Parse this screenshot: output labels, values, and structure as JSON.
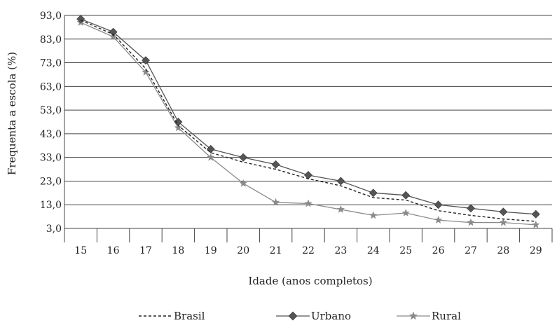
{
  "chart_data": {
    "type": "line",
    "xlabel": "Idade (anos completos)",
    "ylabel": "Frequenta a escola (%)",
    "x": [
      "15",
      "16",
      "17",
      "18",
      "19",
      "20",
      "21",
      "22",
      "23",
      "24",
      "25",
      "26",
      "27",
      "28",
      "29"
    ],
    "yticks": [
      "3,0",
      "13,0",
      "23,0",
      "33,0",
      "43,0",
      "53,0",
      "63,0",
      "73,0",
      "83,0",
      "93,0"
    ],
    "ylim": [
      3,
      93
    ],
    "grid": true,
    "legend_position": "bottom",
    "series": [
      {
        "name": "Brasil",
        "style": "dashed",
        "marker": "none",
        "color": "#222222",
        "values": [
          91.0,
          85.0,
          70.5,
          46.5,
          35.0,
          31.0,
          28.0,
          24.0,
          21.0,
          16.0,
          15.0,
          10.5,
          8.5,
          7.0,
          6.0
        ]
      },
      {
        "name": "Urbano",
        "style": "solid",
        "marker": "diamond",
        "color": "#555555",
        "values": [
          91.5,
          86.0,
          74.0,
          48.0,
          36.5,
          33.0,
          30.0,
          25.5,
          23.0,
          18.0,
          17.0,
          13.0,
          11.5,
          10.0,
          9.0
        ]
      },
      {
        "name": "Rural",
        "style": "solid",
        "marker": "star",
        "color": "#8a8a8a",
        "values": [
          90.0,
          84.0,
          69.0,
          45.5,
          33.0,
          22.0,
          14.0,
          13.5,
          11.0,
          8.5,
          9.5,
          6.5,
          5.5,
          5.5,
          4.5
        ]
      }
    ]
  }
}
